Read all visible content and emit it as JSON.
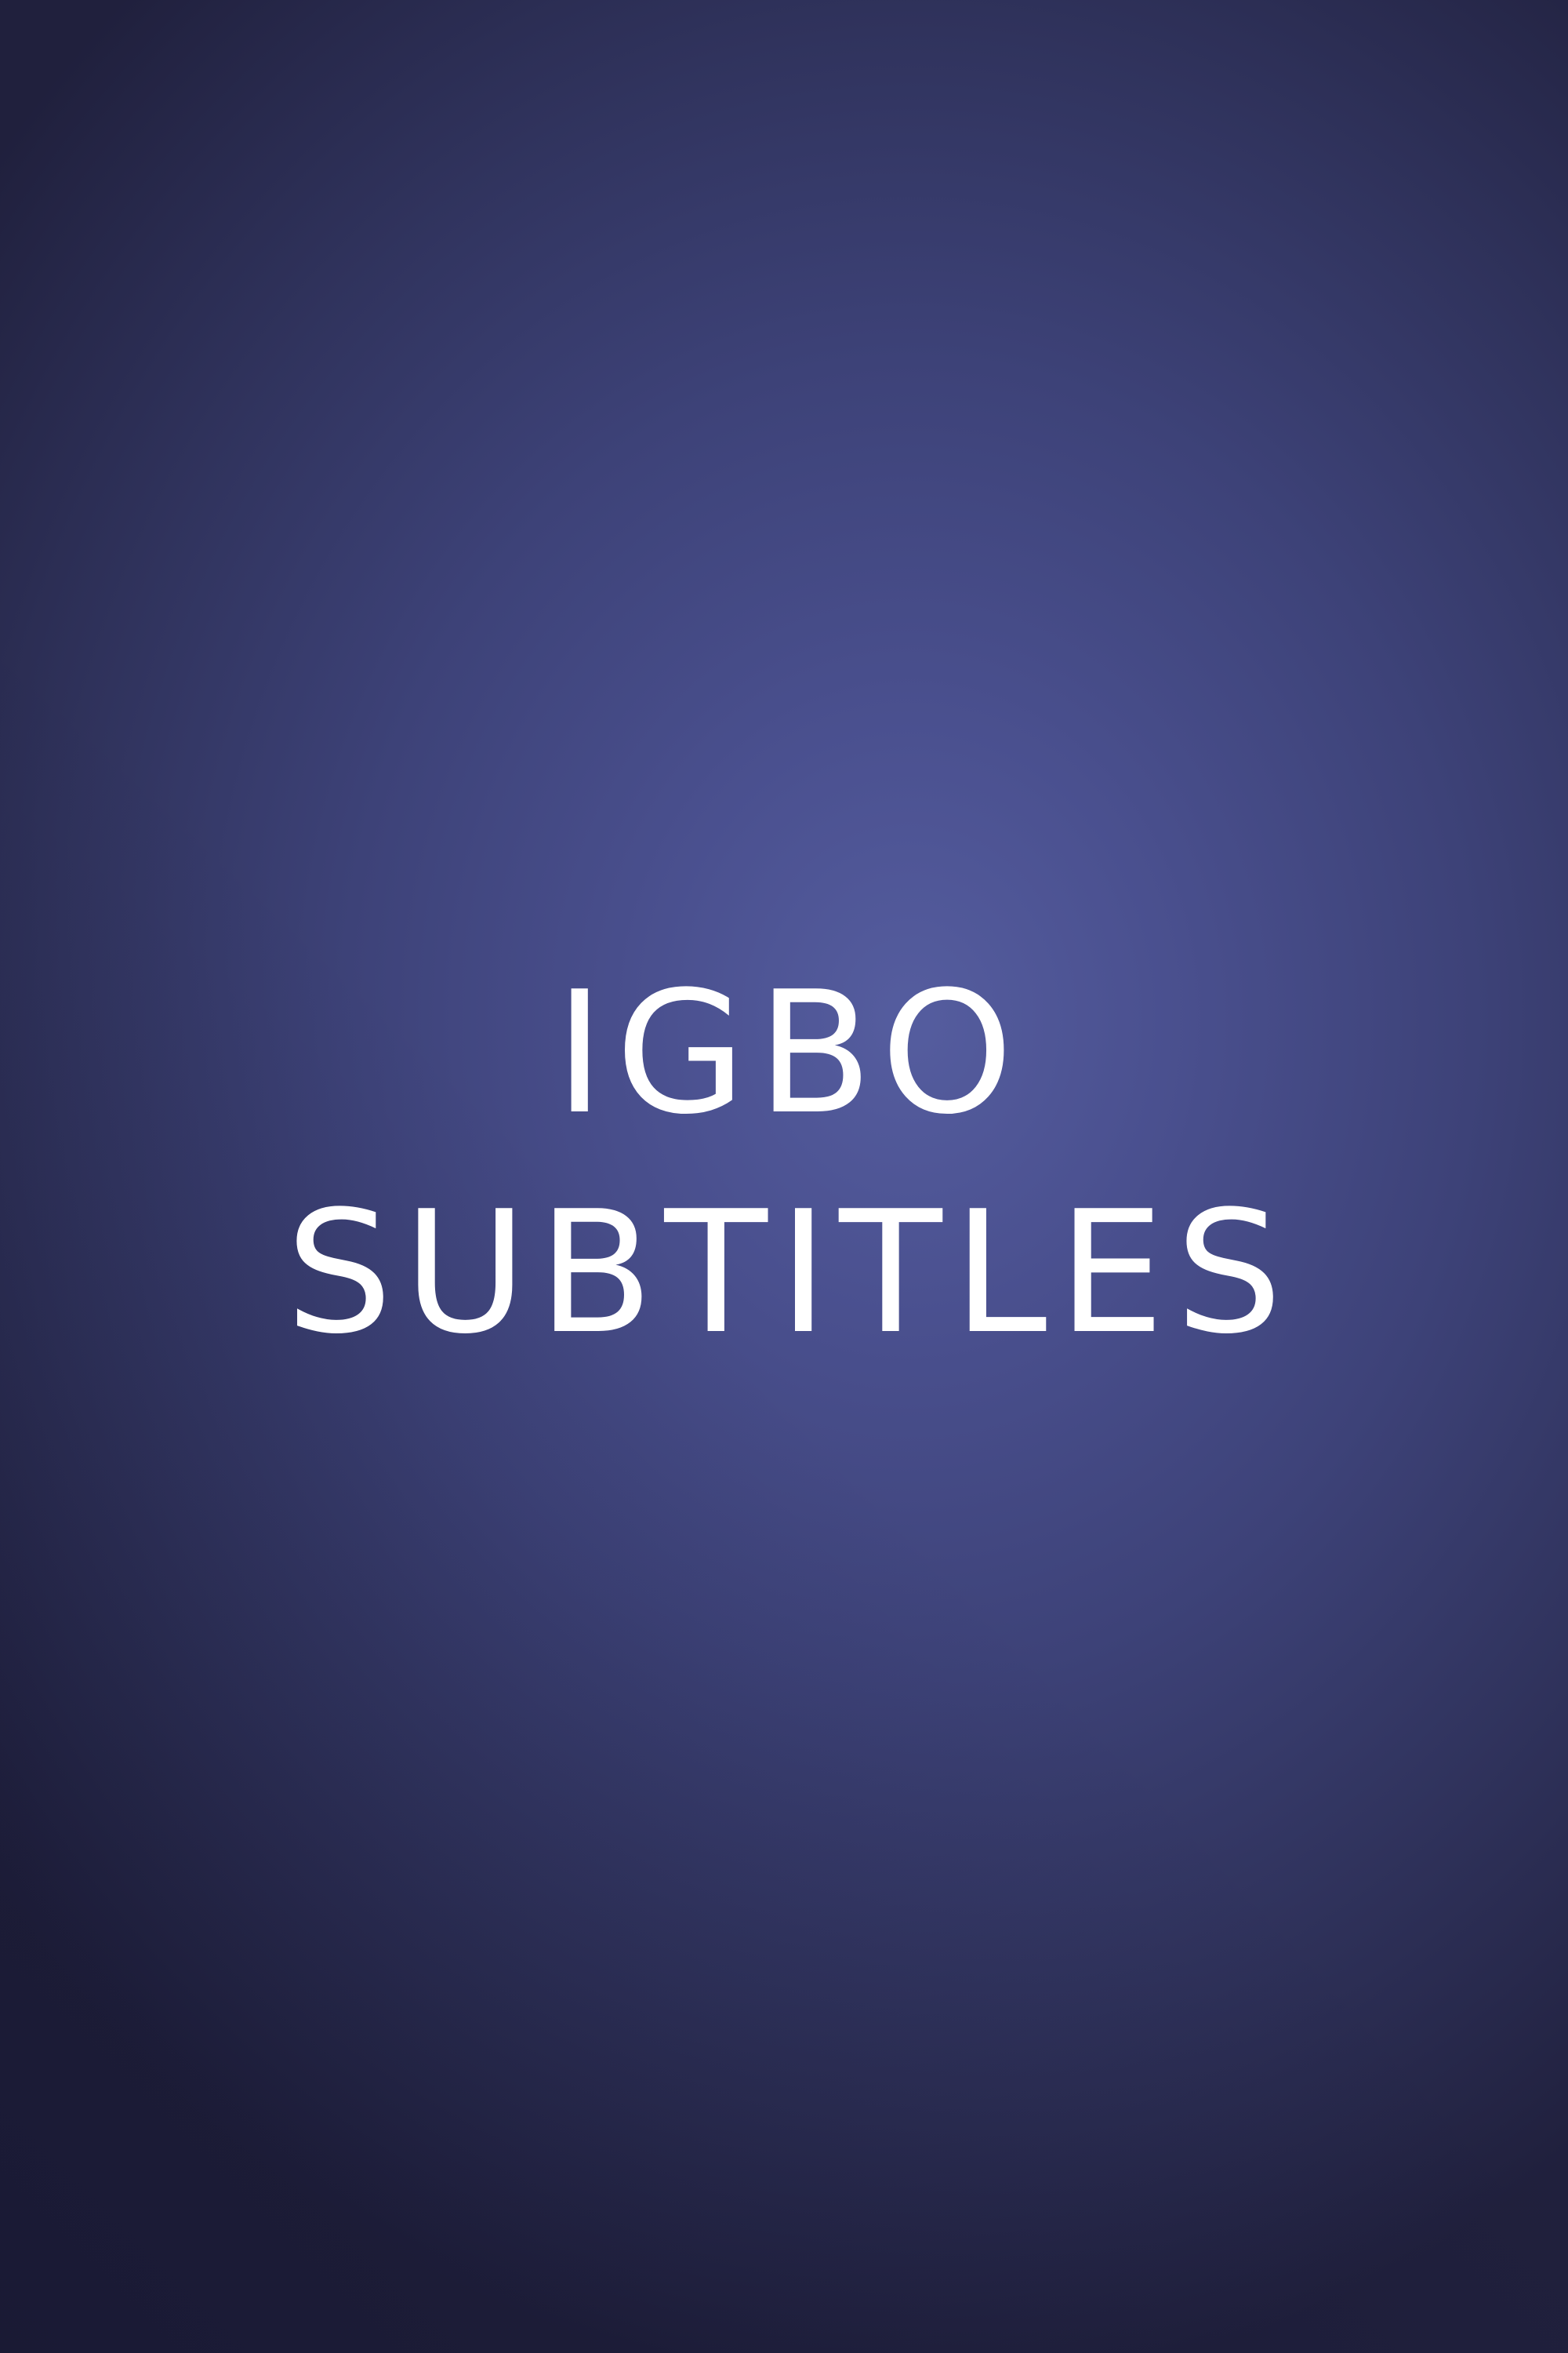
{
  "title": {
    "line1": "IGBO",
    "line2": "SUBTITLES"
  },
  "colors": {
    "background_center": "#555d9f",
    "background_edge": "#20203d",
    "text": "#ffffff"
  }
}
